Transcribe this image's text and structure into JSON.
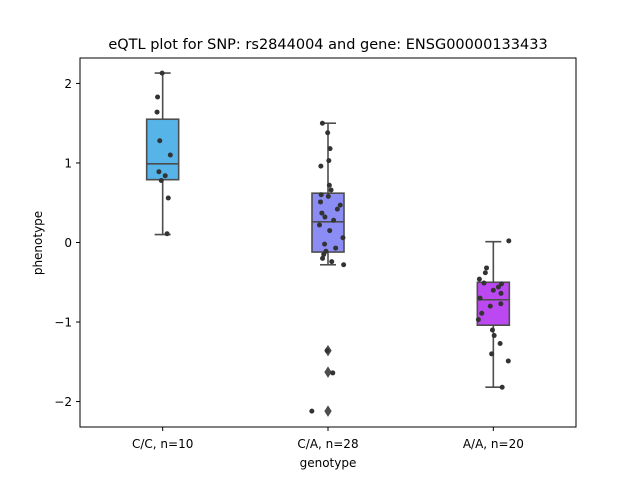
{
  "chart_data": {
    "type": "box",
    "title": "eQTL plot for SNP: rs2844004 and gene: ENSG00000133433",
    "xlabel": "genotype",
    "ylabel": "phenotype",
    "ylim": [
      -2.32,
      2.32
    ],
    "yticks": [
      2,
      1,
      0,
      -1,
      -2
    ],
    "ytick_labels": [
      "2",
      "1",
      "0",
      "−1",
      "−2"
    ],
    "grid": false,
    "categories": [
      "C/C, n=10",
      "C/A, n=28",
      "A/A, n=20"
    ],
    "boxes": [
      {
        "category": "C/C, n=10",
        "color": "#56b4e9",
        "q1": 0.79,
        "median": 0.99,
        "q3": 1.55,
        "whisker_low": 0.1,
        "whisker_high": 2.13,
        "outliers": [],
        "points": [
          {
            "dx": -0.03,
            "y": 2.13
          },
          {
            "dx": -0.3,
            "y": 1.83
          },
          {
            "dx": -0.33,
            "y": 1.64
          },
          {
            "dx": -0.17,
            "y": 1.28
          },
          {
            "dx": 0.45,
            "y": 1.1
          },
          {
            "dx": -0.22,
            "y": 0.89
          },
          {
            "dx": -0.08,
            "y": 0.78
          },
          {
            "dx": 0.33,
            "y": 0.56
          },
          {
            "dx": 0.26,
            "y": 0.11
          },
          {
            "dx": 0.15,
            "y": 0.84
          }
        ]
      },
      {
        "category": "C/A, n=28",
        "color": "#8c8cf5",
        "q1": -0.12,
        "median": 0.26,
        "q3": 0.62,
        "whisker_low": -0.28,
        "whisker_high": 1.5,
        "outliers": [
          -1.36,
          -1.63,
          -2.12
        ],
        "points": [
          {
            "dx": -0.33,
            "y": 1.5
          },
          {
            "dx": -0.02,
            "y": 1.38
          },
          {
            "dx": 0.12,
            "y": 1.18
          },
          {
            "dx": 0.05,
            "y": 1.03
          },
          {
            "dx": -0.42,
            "y": 0.96
          },
          {
            "dx": 0.08,
            "y": 0.72
          },
          {
            "dx": 0.18,
            "y": 0.66
          },
          {
            "dx": -0.4,
            "y": 0.6
          },
          {
            "dx": 0.02,
            "y": 0.58
          },
          {
            "dx": -0.44,
            "y": 0.51
          },
          {
            "dx": 0.72,
            "y": 0.47
          },
          {
            "dx": 0.55,
            "y": 0.42
          },
          {
            "dx": -0.36,
            "y": 0.37
          },
          {
            "dx": -0.18,
            "y": 0.32
          },
          {
            "dx": 0.33,
            "y": 0.28
          },
          {
            "dx": -0.5,
            "y": 0.22
          },
          {
            "dx": 0.1,
            "y": 0.15
          },
          {
            "dx": 0.88,
            "y": 0.06
          },
          {
            "dx": -0.2,
            "y": -0.02
          },
          {
            "dx": 0.45,
            "y": -0.07
          },
          {
            "dx": -0.12,
            "y": -0.11
          },
          {
            "dx": -0.25,
            "y": -0.15
          },
          {
            "dx": -0.32,
            "y": -0.2
          },
          {
            "dx": 0.22,
            "y": -0.24
          },
          {
            "dx": 0.92,
            "y": -0.28
          },
          {
            "dx": -0.05,
            "y": -1.36
          },
          {
            "dx": 0.28,
            "y": -1.64
          },
          {
            "dx": -0.95,
            "y": -2.12
          }
        ]
      },
      {
        "category": "A/A, n=20",
        "color": "#bb48f0",
        "q1": -1.04,
        "median": -0.72,
        "q3": -0.5,
        "whisker_low": -1.82,
        "whisker_high": 0.01,
        "outliers": [],
        "points": [
          {
            "dx": 0.91,
            "y": 0.02
          },
          {
            "dx": -0.4,
            "y": -0.32
          },
          {
            "dx": -0.47,
            "y": -0.38
          },
          {
            "dx": -0.82,
            "y": -0.46
          },
          {
            "dx": -0.55,
            "y": -0.51
          },
          {
            "dx": 0.48,
            "y": -0.52
          },
          {
            "dx": 0.3,
            "y": -0.56
          },
          {
            "dx": 0.0,
            "y": -0.6
          },
          {
            "dx": 0.45,
            "y": -0.64
          },
          {
            "dx": -0.78,
            "y": -0.7
          },
          {
            "dx": 0.44,
            "y": -0.77
          },
          {
            "dx": -0.18,
            "y": -0.8
          },
          {
            "dx": -0.68,
            "y": -0.89
          },
          {
            "dx": -0.88,
            "y": -0.97
          },
          {
            "dx": -0.05,
            "y": -1.1
          },
          {
            "dx": 0.05,
            "y": -1.17
          },
          {
            "dx": 0.4,
            "y": -1.27
          },
          {
            "dx": -0.1,
            "y": -1.4
          },
          {
            "dx": 0.88,
            "y": -1.49
          },
          {
            "dx": 0.52,
            "y": -1.82
          }
        ]
      }
    ]
  }
}
